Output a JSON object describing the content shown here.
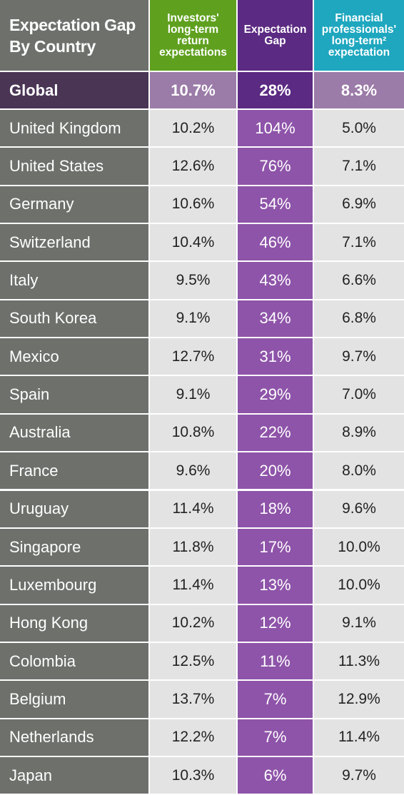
{
  "header": {
    "title": "Expectation Gap\nBy Country",
    "col_investors": "Investors'\nlong-term\nreturn\nexpectations",
    "col_gap": "Expectation\nGap",
    "col_professionals": "Financial\nprofessionals'\nlong-term²\nexpectation"
  },
  "colors": {
    "name_column": "#6d706b",
    "investors_header": "#5fa11f",
    "gap_header": "#5b2a82",
    "professionals_header": "#1ea7bf",
    "gap_cells": "#8e54a9",
    "value_cells": "#e3e3e3",
    "global_row": "#4a3555"
  },
  "chart_data": {
    "type": "table",
    "title": "Expectation Gap By Country",
    "columns": [
      "Investors' long-term return expectations",
      "Expectation Gap",
      "Financial professionals' long-term² expectation"
    ],
    "global": {
      "country": "Global",
      "investors": "10.7%",
      "gap": "28%",
      "professionals": "8.3%"
    },
    "rows": [
      {
        "country": "United Kingdom",
        "investors": "10.2%",
        "gap": "104%",
        "professionals": "5.0%"
      },
      {
        "country": "United States",
        "investors": "12.6%",
        "gap": "76%",
        "professionals": "7.1%"
      },
      {
        "country": "Germany",
        "investors": "10.6%",
        "gap": "54%",
        "professionals": "6.9%"
      },
      {
        "country": "Switzerland",
        "investors": "10.4%",
        "gap": "46%",
        "professionals": "7.1%"
      },
      {
        "country": "Italy",
        "investors": "9.5%",
        "gap": "43%",
        "professionals": "6.6%"
      },
      {
        "country": "South Korea",
        "investors": "9.1%",
        "gap": "34%",
        "professionals": "6.8%"
      },
      {
        "country": "Mexico",
        "investors": "12.7%",
        "gap": "31%",
        "professionals": "9.7%"
      },
      {
        "country": "Spain",
        "investors": "9.1%",
        "gap": "29%",
        "professionals": "7.0%"
      },
      {
        "country": "Australia",
        "investors": "10.8%",
        "gap": "22%",
        "professionals": "8.9%"
      },
      {
        "country": "France",
        "investors": "9.6%",
        "gap": "20%",
        "professionals": "8.0%"
      },
      {
        "country": "Uruguay",
        "investors": "11.4%",
        "gap": "18%",
        "professionals": "9.6%"
      },
      {
        "country": "Singapore",
        "investors": "11.8%",
        "gap": "17%",
        "professionals": "10.0%"
      },
      {
        "country": "Luxembourg",
        "investors": "11.4%",
        "gap": "13%",
        "professionals": "10.0%"
      },
      {
        "country": "Hong Kong",
        "investors": "10.2%",
        "gap": "12%",
        "professionals": "9.1%"
      },
      {
        "country": "Colombia",
        "investors": "12.5%",
        "gap": "11%",
        "professionals": "11.3%"
      },
      {
        "country": "Belgium",
        "investors": "13.7%",
        "gap": "7%",
        "professionals": "12.9%"
      },
      {
        "country": "Netherlands",
        "investors": "12.2%",
        "gap": "7%",
        "professionals": "11.4%"
      },
      {
        "country": "Japan",
        "investors": "10.3%",
        "gap": "6%",
        "professionals": "9.7%"
      }
    ]
  }
}
